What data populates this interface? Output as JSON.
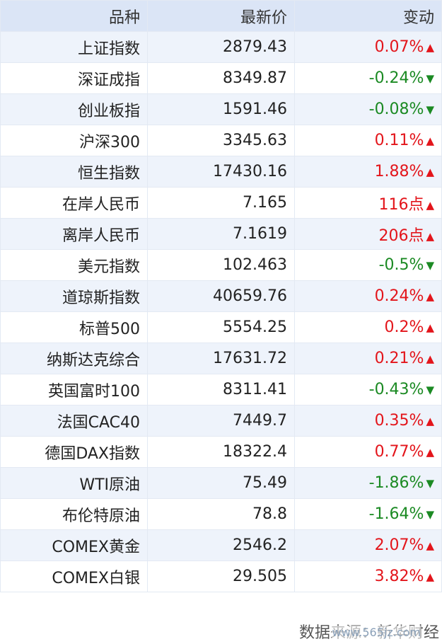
{
  "table": {
    "header": [
      "品种",
      "最新价",
      "变动"
    ],
    "rows": [
      {
        "name": "上证指数",
        "price": "2879.43",
        "change": "0.07%",
        "arrow": "▲",
        "color": "#e3151b"
      },
      {
        "name": "深证成指",
        "price": "8349.87",
        "change": "-0.24%",
        "arrow": "▼",
        "color": "#1b8a23"
      },
      {
        "name": "创业板指",
        "price": "1591.46",
        "change": "-0.08%",
        "arrow": "▼",
        "color": "#1b8a23"
      },
      {
        "name": "沪深300",
        "price": "3345.63",
        "change": "0.11%",
        "arrow": "▲",
        "color": "#e3151b"
      },
      {
        "name": "恒生指数",
        "price": "17430.16",
        "change": "1.88%",
        "arrow": "▲",
        "color": "#e3151b"
      },
      {
        "name": "在岸人民币",
        "price": "7.165",
        "change": "116点",
        "arrow": "▲",
        "color": "#e3151b"
      },
      {
        "name": "离岸人民币",
        "price": "7.1619",
        "change": "206点",
        "arrow": "▲",
        "color": "#e3151b"
      },
      {
        "name": "美元指数",
        "price": "102.463",
        "change": "-0.5%",
        "arrow": "▼",
        "color": "#1b8a23"
      },
      {
        "name": "道琼斯指数",
        "price": "40659.76",
        "change": "0.24%",
        "arrow": "▲",
        "color": "#e3151b"
      },
      {
        "name": "标普500",
        "price": "5554.25",
        "change": "0.2%",
        "arrow": "▲",
        "color": "#e3151b"
      },
      {
        "name": "纳斯达克综合",
        "price": "17631.72",
        "change": "0.21%",
        "arrow": "▲",
        "color": "#e3151b"
      },
      {
        "name": "英国富时100",
        "price": "8311.41",
        "change": "-0.43%",
        "arrow": "▼",
        "color": "#1b8a23"
      },
      {
        "name": "法国CAC40",
        "price": "7449.7",
        "change": "0.35%",
        "arrow": "▲",
        "color": "#e3151b"
      },
      {
        "name": "德国DAX指数",
        "price": "18322.4",
        "change": "0.77%",
        "arrow": "▲",
        "color": "#e3151b"
      },
      {
        "name": "WTI原油",
        "price": "75.49",
        "change": "-1.86%",
        "arrow": "▼",
        "color": "#1b8a23"
      },
      {
        "name": "布伦特原油",
        "price": "78.8",
        "change": "-1.64%",
        "arrow": "▼",
        "color": "#1b8a23"
      },
      {
        "name": "COMEX黄金",
        "price": "2546.2",
        "change": "2.07%",
        "arrow": "▲",
        "color": "#e3151b"
      },
      {
        "name": "COMEX白银",
        "price": "29.505",
        "change": "3.82%",
        "arrow": "▲",
        "color": "#e3151b"
      }
    ]
  },
  "footer": {
    "source": "数据来源：新华财经",
    "watermark": "www.565jz.com"
  }
}
